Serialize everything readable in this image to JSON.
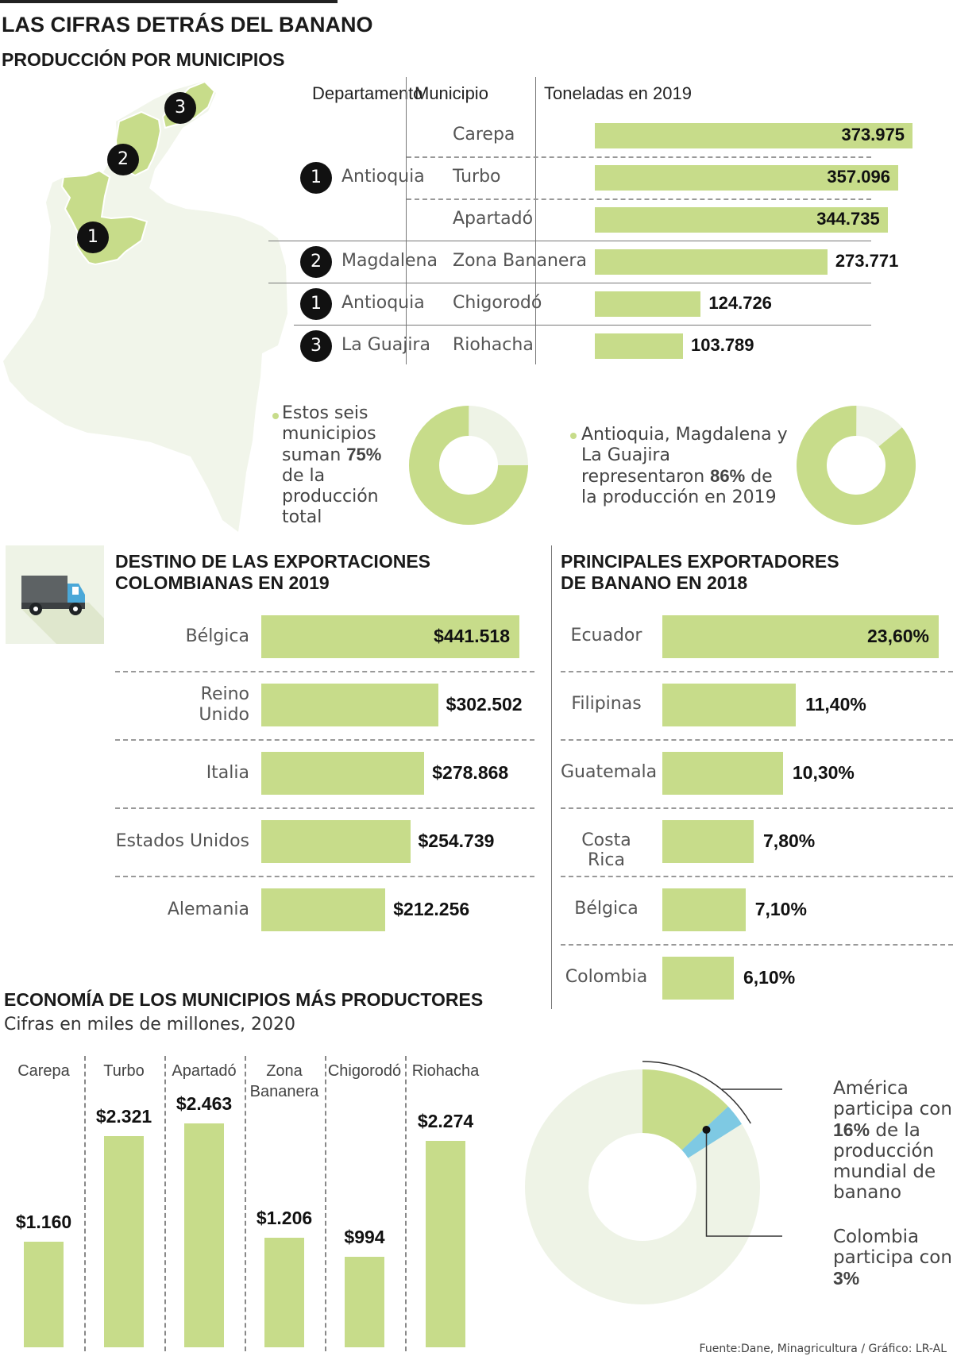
{
  "header": {
    "title": "LAS CIFRAS DETRÁS DEL BANANO",
    "subtitle": "PRODUCCIÓN POR MUNICIPIOS"
  },
  "colors": {
    "accent": "#c7dc8a",
    "light": "#eef3e6",
    "blue": "#7ec9e3",
    "map": "#f1f5ea",
    "dark": "#111111"
  },
  "map": {
    "markers": [
      "1",
      "2",
      "3"
    ]
  },
  "production_table": {
    "headers": {
      "departamento": "Departamento",
      "municipio": "Municipio",
      "toneladas": "Toneladas en 2019"
    },
    "rows": [
      {
        "num": "",
        "departamento": "",
        "municipio": "Carepa",
        "value": 373975,
        "label": "373.975"
      },
      {
        "num": "1",
        "departamento": "Antioquia",
        "municipio": "Turbo",
        "value": 357096,
        "label": "357.096"
      },
      {
        "num": "",
        "departamento": "",
        "municipio": "Apartadó",
        "value": 344735,
        "label": "344.735"
      },
      {
        "num": "2",
        "departamento": "Magdalena",
        "municipio": "Zona Bananera",
        "value": 273771,
        "label": "273.771"
      },
      {
        "num": "1",
        "departamento": "Antioquia",
        "municipio": "Chigorodó",
        "value": 124726,
        "label": "124.726"
      },
      {
        "num": "3",
        "departamento": "La Guajira",
        "municipio": "Riohacha",
        "value": 103789,
        "label": "103.789"
      }
    ]
  },
  "donuts": [
    {
      "pre": "Estos seis municipios suman ",
      "bold": "75%",
      "post": " de la producción total",
      "value": 75
    },
    {
      "pre": "Antioquia, Magdalena y La Guajira representaron ",
      "bold": "86%",
      "post": " de la producción en 2019",
      "value": 86
    }
  ],
  "exports": {
    "title_line1": "DESTINO DE LAS EXPORTACIONES",
    "title_line2": "COLOMBIANAS EN 2019",
    "icon": "truck-icon",
    "rows": [
      {
        "label_lines": [
          "Bélgica"
        ],
        "value": 441518,
        "label": "$441.518"
      },
      {
        "label_lines": [
          "Reino",
          "Unido"
        ],
        "value": 302502,
        "label": "$302.502"
      },
      {
        "label_lines": [
          "Italia"
        ],
        "value": 278868,
        "label": "$278.868"
      },
      {
        "label_lines": [
          "Estados Unidos"
        ],
        "value": 254739,
        "label": "$254.739"
      },
      {
        "label_lines": [
          "Alemania"
        ],
        "value": 212256,
        "label": "$212.256"
      }
    ]
  },
  "exporters": {
    "title_line1": "PRINCIPALES EXPORTADORES",
    "title_line2": "DE BANANO EN 2018",
    "rows": [
      {
        "country": "Ecuador",
        "value": 23.6,
        "label": "23,60%"
      },
      {
        "country": "Filipinas",
        "value": 11.4,
        "label": "11,40%"
      },
      {
        "country": "Guatemala",
        "value": 10.3,
        "label": "10,30%"
      },
      {
        "country": "Costa Rica",
        "value": 7.8,
        "label": "7,80%"
      },
      {
        "country": "Bélgica",
        "value": 7.1,
        "label": "7,10%"
      },
      {
        "country": "Colombia",
        "value": 6.1,
        "label": "6,10%"
      }
    ]
  },
  "economy": {
    "title": "ECONOMÍA DE LOS MUNICIPIOS MÁS PRODUCTORES",
    "subtitle": "Cifras en miles de millones, 2020",
    "columns": [
      {
        "name_lines": [
          "Carepa"
        ],
        "value": 1160,
        "label": "$1.160"
      },
      {
        "name_lines": [
          "Turbo"
        ],
        "value": 2321,
        "label": "$2.321"
      },
      {
        "name_lines": [
          "Apartadó"
        ],
        "value": 2463,
        "label": "$2.463"
      },
      {
        "name_lines": [
          "Zona",
          "Bananera"
        ],
        "value": 1206,
        "label": "$1.206"
      },
      {
        "name_lines": [
          "Chigorodó"
        ],
        "value": 994,
        "label": "$994"
      },
      {
        "name_lines": [
          "Riohacha"
        ],
        "value": 2274,
        "label": "$2.274"
      }
    ]
  },
  "world": {
    "america_pct": 16,
    "colombia_pct": 3,
    "america_pre": "América participa con ",
    "america_bold": "16%",
    "america_post": " de la producción mundial de banano",
    "colombia_pre": "Colombia participa con ",
    "colombia_bold": "3%"
  },
  "chart_data": [
    {
      "type": "bar",
      "title": "PRODUCCIÓN POR MUNICIPIOS",
      "ylabel": "Toneladas en 2019",
      "categories": [
        "Carepa",
        "Turbo",
        "Apartadó",
        "Zona Bananera",
        "Chigorodó",
        "Riohacha"
      ],
      "values": [
        373975,
        357096,
        344735,
        273771,
        124726,
        103789
      ]
    },
    {
      "type": "pie",
      "categories": [
        "Seis municipios",
        "Resto"
      ],
      "values": [
        75,
        25
      ]
    },
    {
      "type": "pie",
      "categories": [
        "Antioquia, Magdalena y La Guajira",
        "Resto"
      ],
      "values": [
        86,
        14
      ]
    },
    {
      "type": "bar",
      "title": "DESTINO DE LAS EXPORTACIONES COLOMBIANAS EN 2019",
      "categories": [
        "Bélgica",
        "Reino Unido",
        "Italia",
        "Estados Unidos",
        "Alemania"
      ],
      "values": [
        441518,
        302502,
        278868,
        254739,
        212256
      ]
    },
    {
      "type": "bar",
      "title": "PRINCIPALES EXPORTADORES DE BANANO EN 2018",
      "categories": [
        "Ecuador",
        "Filipinas",
        "Guatemala",
        "Costa Rica",
        "Bélgica",
        "Colombia"
      ],
      "values": [
        23.6,
        11.4,
        10.3,
        7.8,
        7.1,
        6.1
      ]
    },
    {
      "type": "bar",
      "title": "ECONOMÍA DE LOS MUNICIPIOS MÁS PRODUCTORES",
      "subtitle": "Cifras en miles de millones, 2020",
      "categories": [
        "Carepa",
        "Turbo",
        "Apartadó",
        "Zona Bananera",
        "Chigorodó",
        "Riohacha"
      ],
      "values": [
        1160,
        2321,
        2463,
        1206,
        994,
        2274
      ]
    },
    {
      "type": "pie",
      "categories": [
        "América",
        "Colombia"
      ],
      "values": [
        16,
        3
      ]
    }
  ],
  "footer": {
    "source": "Fuente:Dane, Minagricultura / Gráfico: LR-AL"
  }
}
